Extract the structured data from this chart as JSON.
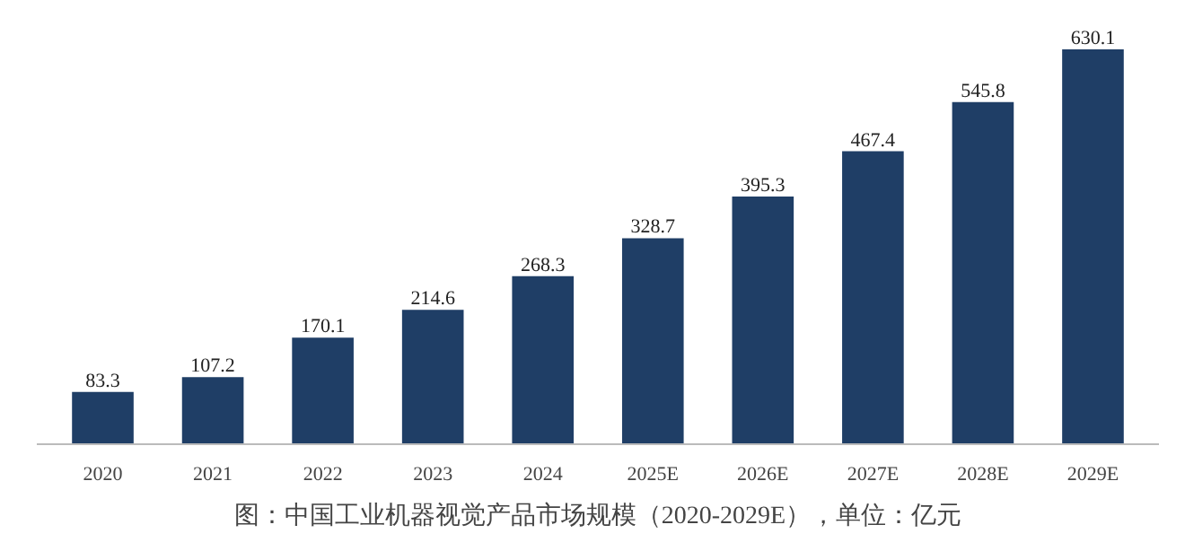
{
  "chart_data": {
    "type": "bar",
    "title": "图：中国工业机器视觉产品市场规模（2020-2029E），单位：亿元",
    "categories": [
      "2020",
      "2021",
      "2022",
      "2023",
      "2024",
      "2025E",
      "2026E",
      "2027E",
      "2028E",
      "2029E"
    ],
    "values": [
      83.3,
      107.2,
      170.1,
      214.6,
      268.3,
      328.7,
      395.3,
      467.4,
      545.8,
      630.1
    ],
    "color": "#1f3e66",
    "data_labels": true,
    "grid": false
  }
}
